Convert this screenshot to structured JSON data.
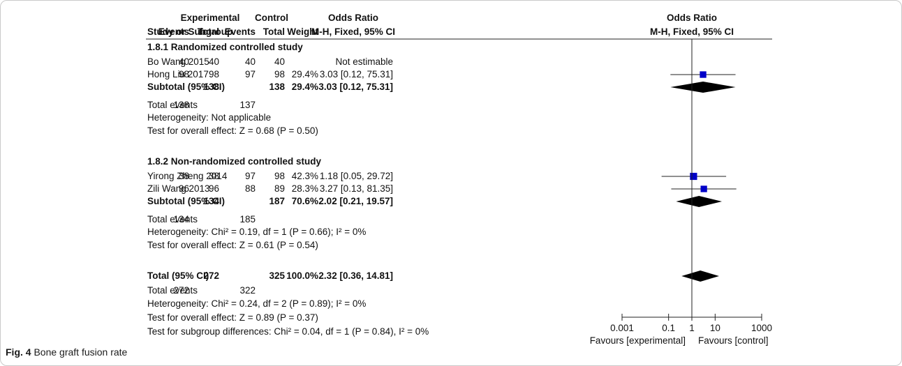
{
  "header": {
    "group_experimental": "Experimental",
    "group_control": "Control",
    "or_text": "Odds Ratio",
    "or_graph": "Odds Ratio",
    "study": "Study or Subgroup",
    "events": "Events",
    "total": "Total",
    "weight": "Weight",
    "method_text": "M-H, Fixed, 95% CI",
    "method_graph": "M-H, Fixed, 95% CI"
  },
  "subgroups": [
    {
      "title": "1.8.1 Randomized controlled study",
      "studies": [
        {
          "name": "Bo Wang 2015",
          "e_events": "40",
          "e_total": "40",
          "c_events": "40",
          "c_total": "40",
          "weight": "",
          "ci_text": "Not estimable",
          "or": null,
          "lo": null,
          "hi": null,
          "w": 0
        },
        {
          "name": "Hong Liu 2017",
          "e_events": "98",
          "e_total": "98",
          "c_events": "97",
          "c_total": "98",
          "weight": "29.4%",
          "ci_text": "3.03 [0.12, 75.31]",
          "or": 3.03,
          "lo": 0.12,
          "hi": 75.31,
          "w": 29.4
        }
      ],
      "subtotal": {
        "label": "Subtotal (95% CI)",
        "e_total": "138",
        "c_total": "138",
        "weight": "29.4%",
        "ci_text": "3.03 [0.12, 75.31]",
        "or": 3.03,
        "lo": 0.12,
        "hi": 75.31
      },
      "total_events": {
        "label": "Total events",
        "e": "138",
        "c": "137"
      },
      "heterogeneity": "Heterogeneity: Not applicable",
      "overall_effect": "Test for overall effect: Z = 0.68 (P = 0.50)"
    },
    {
      "title": "1.8.2 Non-randomized controlled study",
      "studies": [
        {
          "name": "Yirong Zheng 2014",
          "e_events": "38",
          "e_total": "38",
          "c_events": "97",
          "c_total": "98",
          "weight": "42.3%",
          "ci_text": "1.18 [0.05, 29.72]",
          "or": 1.18,
          "lo": 0.05,
          "hi": 29.72,
          "w": 42.3
        },
        {
          "name": "Zili Wang 2013",
          "e_events": "96",
          "e_total": "96",
          "c_events": "88",
          "c_total": "89",
          "weight": "28.3%",
          "ci_text": "3.27 [0.13, 81.35]",
          "or": 3.27,
          "lo": 0.13,
          "hi": 81.35,
          "w": 28.3
        }
      ],
      "subtotal": {
        "label": "Subtotal (95% CI)",
        "e_total": "134",
        "c_total": "187",
        "weight": "70.6%",
        "ci_text": "2.02 [0.21, 19.57]",
        "or": 2.02,
        "lo": 0.21,
        "hi": 19.57
      },
      "total_events": {
        "label": "Total events",
        "e": "134",
        "c": "185"
      },
      "heterogeneity": "Heterogeneity: Chi² = 0.19, df = 1 (P = 0.66); I² = 0%",
      "overall_effect": "Test for overall effect: Z = 0.61 (P = 0.54)"
    }
  ],
  "overall": {
    "label": "Total (95% CI)",
    "e_total": "272",
    "c_total": "325",
    "weight": "100.0%",
    "ci_text": "2.32 [0.36, 14.81]",
    "or": 2.32,
    "lo": 0.36,
    "hi": 14.81,
    "total_events": {
      "label": "Total events",
      "e": "272",
      "c": "322"
    },
    "heterogeneity": "Heterogeneity: Chi² = 0.24, df = 2 (P = 0.89); I² = 0%",
    "overall_effect": "Test for overall effect: Z = 0.89 (P = 0.37)",
    "subgroup_diff": "Test for subgroup differences: Chi² = 0.04, df = 1 (P = 0.84), I² = 0%"
  },
  "chart_data": {
    "type": "forest",
    "scale": "log",
    "xlim": [
      0.001,
      1000
    ],
    "axis_ticks": [
      "0.001",
      "0.1",
      "1",
      "10",
      "1000"
    ],
    "axis_tick_values": [
      0.001,
      0.1,
      1,
      10,
      1000
    ],
    "favours_left": "Favours [experimental]",
    "favours_right": "Favours [control]",
    "marker_color": "#0000c8",
    "diamond_color": "#000000"
  },
  "caption": {
    "fig": "Fig. 4",
    "text": " Bone graft fusion rate"
  }
}
